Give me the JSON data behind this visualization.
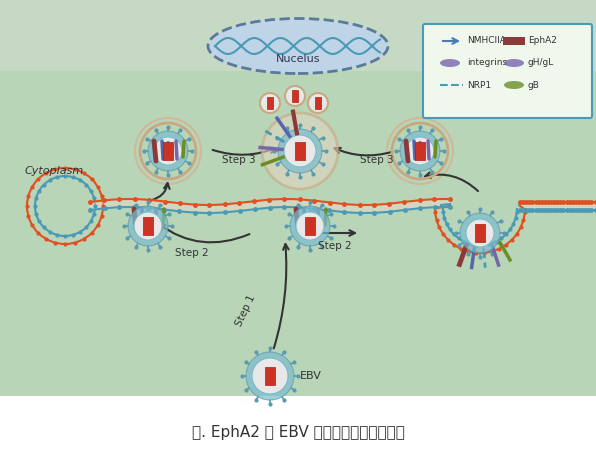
{
  "title": "图. EphA2 在 EBV 感染上皮细胞中的作用",
  "title_fontsize": 11,
  "bg_color_top": "#b8d5c0",
  "bg_color_bottom": "#c8dfc8",
  "white_area_color": "#ffffff",
  "legend_title_color": "#4a9ab5",
  "legend_items_left": [
    "NMHCIIA",
    "integrins",
    "NRP1"
  ],
  "legend_items_right": [
    "EphA2",
    "gH/gL",
    "gB"
  ],
  "legend_colors_left": [
    "#808080",
    "#808080",
    "#4a9ab5"
  ],
  "legend_colors_right": [
    "#8b1a1a",
    "#6a5acd",
    "#6b8e23"
  ],
  "cell_membrane_color_outer": "#e05020",
  "cell_membrane_color_inner": "#4a9ab5",
  "virus_outer_color": "#4a9ab5",
  "virus_inner_color": "#e05020",
  "cytoplasm_text": "Cytoplasm",
  "nucleus_text": "Nucelus",
  "step1_text": "Step 1",
  "step2_texts": [
    "Step 2",
    "Step 2"
  ],
  "step3_texts": [
    "Step 3",
    "Step 3"
  ],
  "ebv_text": "EBV",
  "arrow_color": "#333333",
  "nucleus_border_color": "#4a7a9b",
  "nucleus_fill_color": "#b0c8e0",
  "dna_wave_color": "#4a9ab5"
}
